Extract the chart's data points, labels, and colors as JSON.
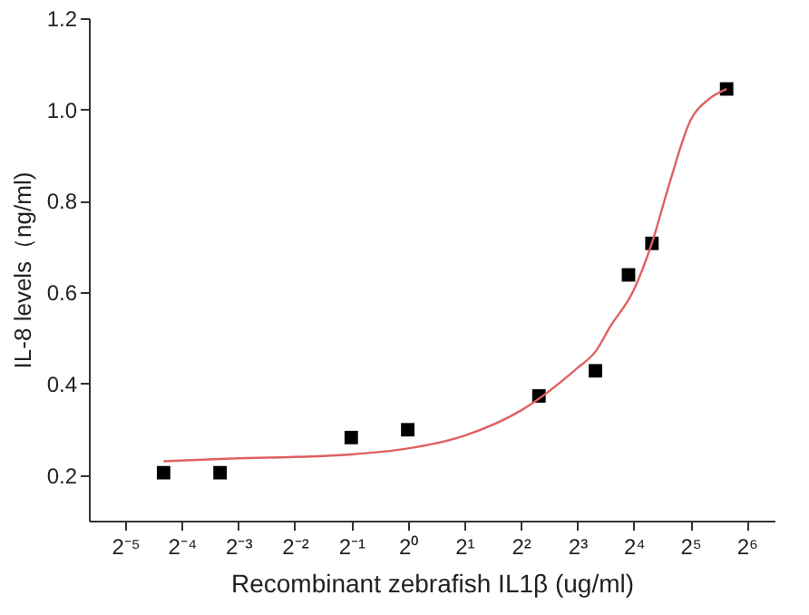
{
  "chart_data": {
    "type": "scatter",
    "xlabel": "Recombinant zebrafish IL1β (ug/ml)",
    "ylabel": "IL-8 levels（ng/ml)",
    "log": "x",
    "grid": false,
    "xlim": [
      0.02,
      90
    ],
    "xticks": [
      {
        "value": 0.03125,
        "label": "2⁻⁵"
      },
      {
        "value": 0.0625,
        "label": "2⁻⁴"
      },
      {
        "value": 0.125,
        "label": "2⁻³"
      },
      {
        "value": 0.25,
        "label": "2⁻²"
      },
      {
        "value": 0.5,
        "label": "2⁻¹"
      },
      {
        "value": 1,
        "label": "2⁰"
      },
      {
        "value": 2,
        "label": "2¹"
      },
      {
        "value": 4,
        "label": "2²"
      },
      {
        "value": 8,
        "label": "2³"
      },
      {
        "value": 16,
        "label": "2⁴"
      },
      {
        "value": 32,
        "label": "2⁵"
      },
      {
        "value": 64,
        "label": "2⁶"
      }
    ],
    "ylim": [
      0.1,
      1.2
    ],
    "yticks": [
      0.2,
      0.4,
      0.6,
      0.8,
      {
        "value": 1.0,
        "label": "1.0"
      },
      1.2
    ],
    "series": [
      {
        "type": "scatter",
        "marker": "square",
        "color": "#000000",
        "x": [
          0.05,
          0.1,
          0.5,
          1,
          5,
          10,
          15,
          20,
          50
        ],
        "values": [
          0.205,
          0.205,
          0.282,
          0.299,
          0.373,
          0.428,
          0.638,
          0.707,
          1.045
        ]
      },
      {
        "type": "line",
        "marker": "none",
        "color": "#e06060",
        "x": [
          0.05,
          0.1,
          0.5,
          1,
          2,
          4,
          8,
          10,
          12,
          16,
          20,
          25,
          32,
          40,
          50
        ],
        "values": [
          0.23,
          0.235,
          0.245,
          0.258,
          0.286,
          0.341,
          0.434,
          0.47,
          0.525,
          0.605,
          0.708,
          0.843,
          0.975,
          1.022,
          1.045
        ]
      }
    ]
  }
}
